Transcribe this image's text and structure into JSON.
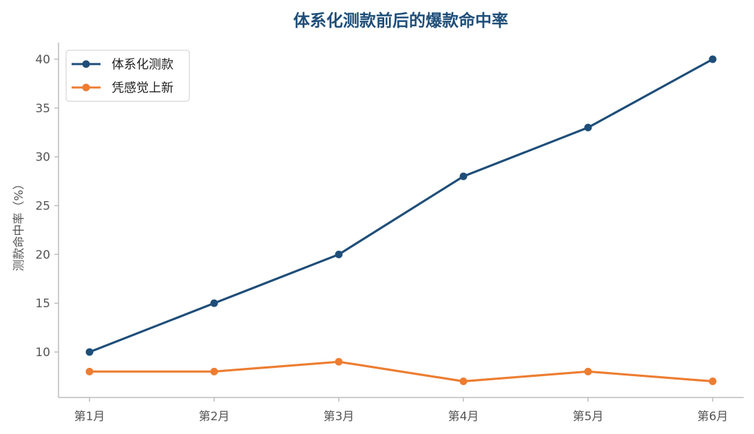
{
  "chart_data": {
    "type": "line",
    "title": "体系化测款前后的爆款命中率",
    "xlabel": "",
    "ylabel": "测款命中率（%）",
    "categories": [
      "第1月",
      "第2月",
      "第3月",
      "第4月",
      "第5月",
      "第6月"
    ],
    "series": [
      {
        "name": "体系化测款",
        "values": [
          10,
          15,
          20,
          28,
          33,
          40
        ],
        "color": "#1f4e79"
      },
      {
        "name": "凭感觉上新",
        "values": [
          8,
          8,
          9,
          7,
          8,
          7
        ],
        "color": "#ed7d31"
      }
    ],
    "yticks": [
      10,
      15,
      20,
      25,
      30,
      35,
      40
    ],
    "ylim": [
      5.5,
      42
    ],
    "grid": false,
    "legend_position": "top-left",
    "title_color": "#1f4e79",
    "axis_color": "#bbbbbb"
  }
}
